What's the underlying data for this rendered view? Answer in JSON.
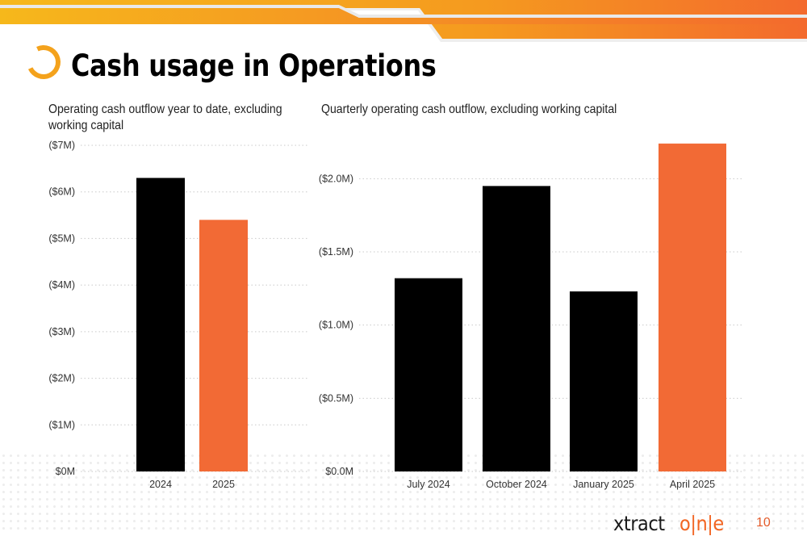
{
  "slide": {
    "title": "Cash usage in Operations",
    "page_number": "10",
    "brand_name": "xtract",
    "brand_mark": "o|n|e"
  },
  "colors": {
    "accent_orange": "#f26a35",
    "black": "#000000",
    "band_start": "#f4b41a",
    "band_end": "#f36a2d"
  },
  "chart_data": [
    {
      "type": "bar",
      "title": "Operating cash outflow year to date, excluding working capital",
      "categories": [
        "2024",
        "2025"
      ],
      "values": [
        6.3,
        5.4
      ],
      "bar_colors": [
        "#000000",
        "#f26a35"
      ],
      "ylim": [
        0,
        7
      ],
      "yticks": [
        0,
        1,
        2,
        3,
        4,
        5,
        6,
        7
      ],
      "ytick_labels": [
        "$0M",
        "($1M)",
        "($2M)",
        "($3M)",
        "($4M)",
        "($5M)",
        "($6M)",
        "($7M)"
      ],
      "grid": true
    },
    {
      "type": "bar",
      "title": "Quarterly operating cash outflow, excluding working capital",
      "categories": [
        "July 2024",
        "October 2024",
        "January 2025",
        "April 2025"
      ],
      "values": [
        1.32,
        1.95,
        1.23,
        2.24
      ],
      "bar_colors": [
        "#000000",
        "#000000",
        "#000000",
        "#f26a35"
      ],
      "ylim": [
        0,
        2.25
      ],
      "yticks": [
        0,
        0.5,
        1.0,
        1.5,
        2.0
      ],
      "ytick_labels": [
        "$0.0M",
        "($0.5M)",
        "($1.0M)",
        "($1.5M)",
        "($2.0M)"
      ],
      "grid": true
    }
  ]
}
